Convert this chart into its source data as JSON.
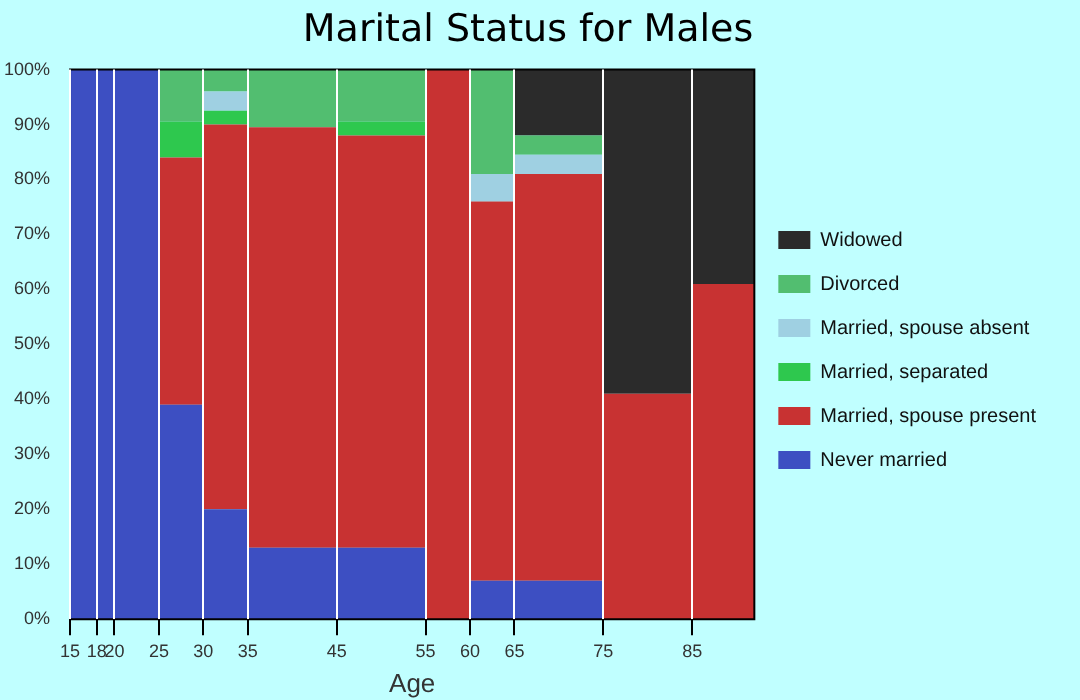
{
  "chart_data": {
    "type": "bar",
    "title": "Marital Status for Males",
    "xlabel": "Age",
    "stacked": true,
    "legend": "right",
    "grid": "x",
    "x": [
      16.5,
      19,
      22.5,
      27.5,
      32.5,
      40,
      50,
      57.5,
      62.5,
      70,
      80,
      88.5
    ],
    "xlim": [
      15,
      92
    ],
    "xticks": [
      15,
      18,
      20,
      25,
      30,
      35,
      45,
      55,
      60,
      65,
      75,
      85
    ],
    "ylim": [
      0,
      100
    ],
    "yticks": [
      {
        "value": 0,
        "label": "0%"
      },
      {
        "value": 10,
        "label": "10%"
      },
      {
        "value": 20,
        "label": "20%"
      },
      {
        "value": 30,
        "label": "30%"
      },
      {
        "value": 40,
        "label": "40%"
      },
      {
        "value": 50,
        "label": "50%"
      },
      {
        "value": 60,
        "label": "60%"
      },
      {
        "value": 70,
        "label": "70%"
      },
      {
        "value": 80,
        "label": "80%"
      },
      {
        "value": 90,
        "label": "90%"
      },
      {
        "value": 100,
        "label": "100%"
      }
    ],
    "series": [
      {
        "name": "Never married",
        "color": "#3d4fc2",
        "values": [
          100,
          100,
          100,
          39,
          20,
          13,
          13,
          0,
          7,
          7,
          0,
          0
        ]
      },
      {
        "name": "Married, spouse present",
        "color": "#c83232",
        "values": [
          0,
          0,
          0,
          45,
          70,
          76.5,
          75,
          100,
          69,
          74,
          41,
          61
        ]
      },
      {
        "name": "Married, separated",
        "color": "#2ec84e",
        "values": [
          0,
          0,
          0,
          6.5,
          2.5,
          0,
          2.5,
          0,
          0,
          0,
          0,
          0
        ]
      },
      {
        "name": "Married, spouse absent",
        "color": "#9fd0e2",
        "values": [
          0,
          0,
          0,
          0,
          3.5,
          0,
          0,
          0,
          5,
          3.5,
          0,
          0
        ]
      },
      {
        "name": "Divorced",
        "color": "#52be70",
        "values": [
          0,
          0,
          0,
          9.5,
          4,
          10.5,
          9.5,
          0,
          19,
          3.5,
          0,
          0
        ]
      },
      {
        "name": "Widowed",
        "color": "#2b2b2b",
        "values": [
          0,
          0,
          0,
          0,
          0,
          0,
          0,
          0,
          0,
          12,
          59,
          39
        ]
      }
    ]
  }
}
